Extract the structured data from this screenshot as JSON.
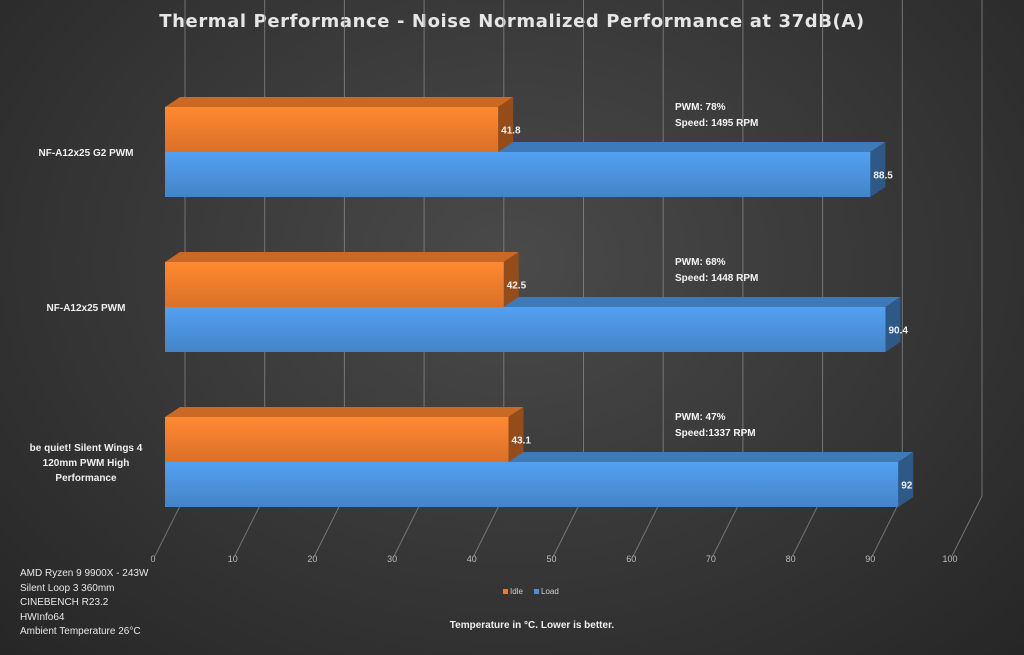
{
  "chart_data": {
    "type": "bar",
    "orientation": "horizontal",
    "style": "3d",
    "title": "Thermal Performance - Noise Normalized Performance at 37dB(A)",
    "categories": [
      "NF-A12x25 G2 PWM",
      "NF-A12x25 PWM",
      "be quiet! Silent Wings 4 120mm PWM High Performance"
    ],
    "series": [
      {
        "name": "Idle",
        "color": "#ee7a2c",
        "values": [
          41.8,
          42.5,
          43.1
        ]
      },
      {
        "name": "Load",
        "color": "#4a8fd8",
        "values": [
          88.5,
          90.4,
          92
        ]
      }
    ],
    "annotations": [
      {
        "pwm": "PWM: 78%",
        "speed": "Speed: 1495 RPM"
      },
      {
        "pwm": "PWM: 68%",
        "speed": "Speed: 1448 RPM"
      },
      {
        "pwm": "PWM: 47%",
        "speed": "Speed:1337 RPM"
      }
    ],
    "x_ticks": [
      "0",
      "10",
      "20",
      "30",
      "40",
      "50",
      "60",
      "70",
      "80",
      "90",
      "100"
    ],
    "xlim": [
      0,
      100
    ],
    "xlabel": "Temperature in °C. Lower is better.",
    "grid": true,
    "legend_position": "bottom"
  },
  "test_setup": [
    "AMD Ryzen 9 9900X - 243W",
    "Silent Loop 3 360mm",
    "CINEBENCH R23.2",
    "HWInfo64",
    "Ambient Temperature 26°C"
  ]
}
